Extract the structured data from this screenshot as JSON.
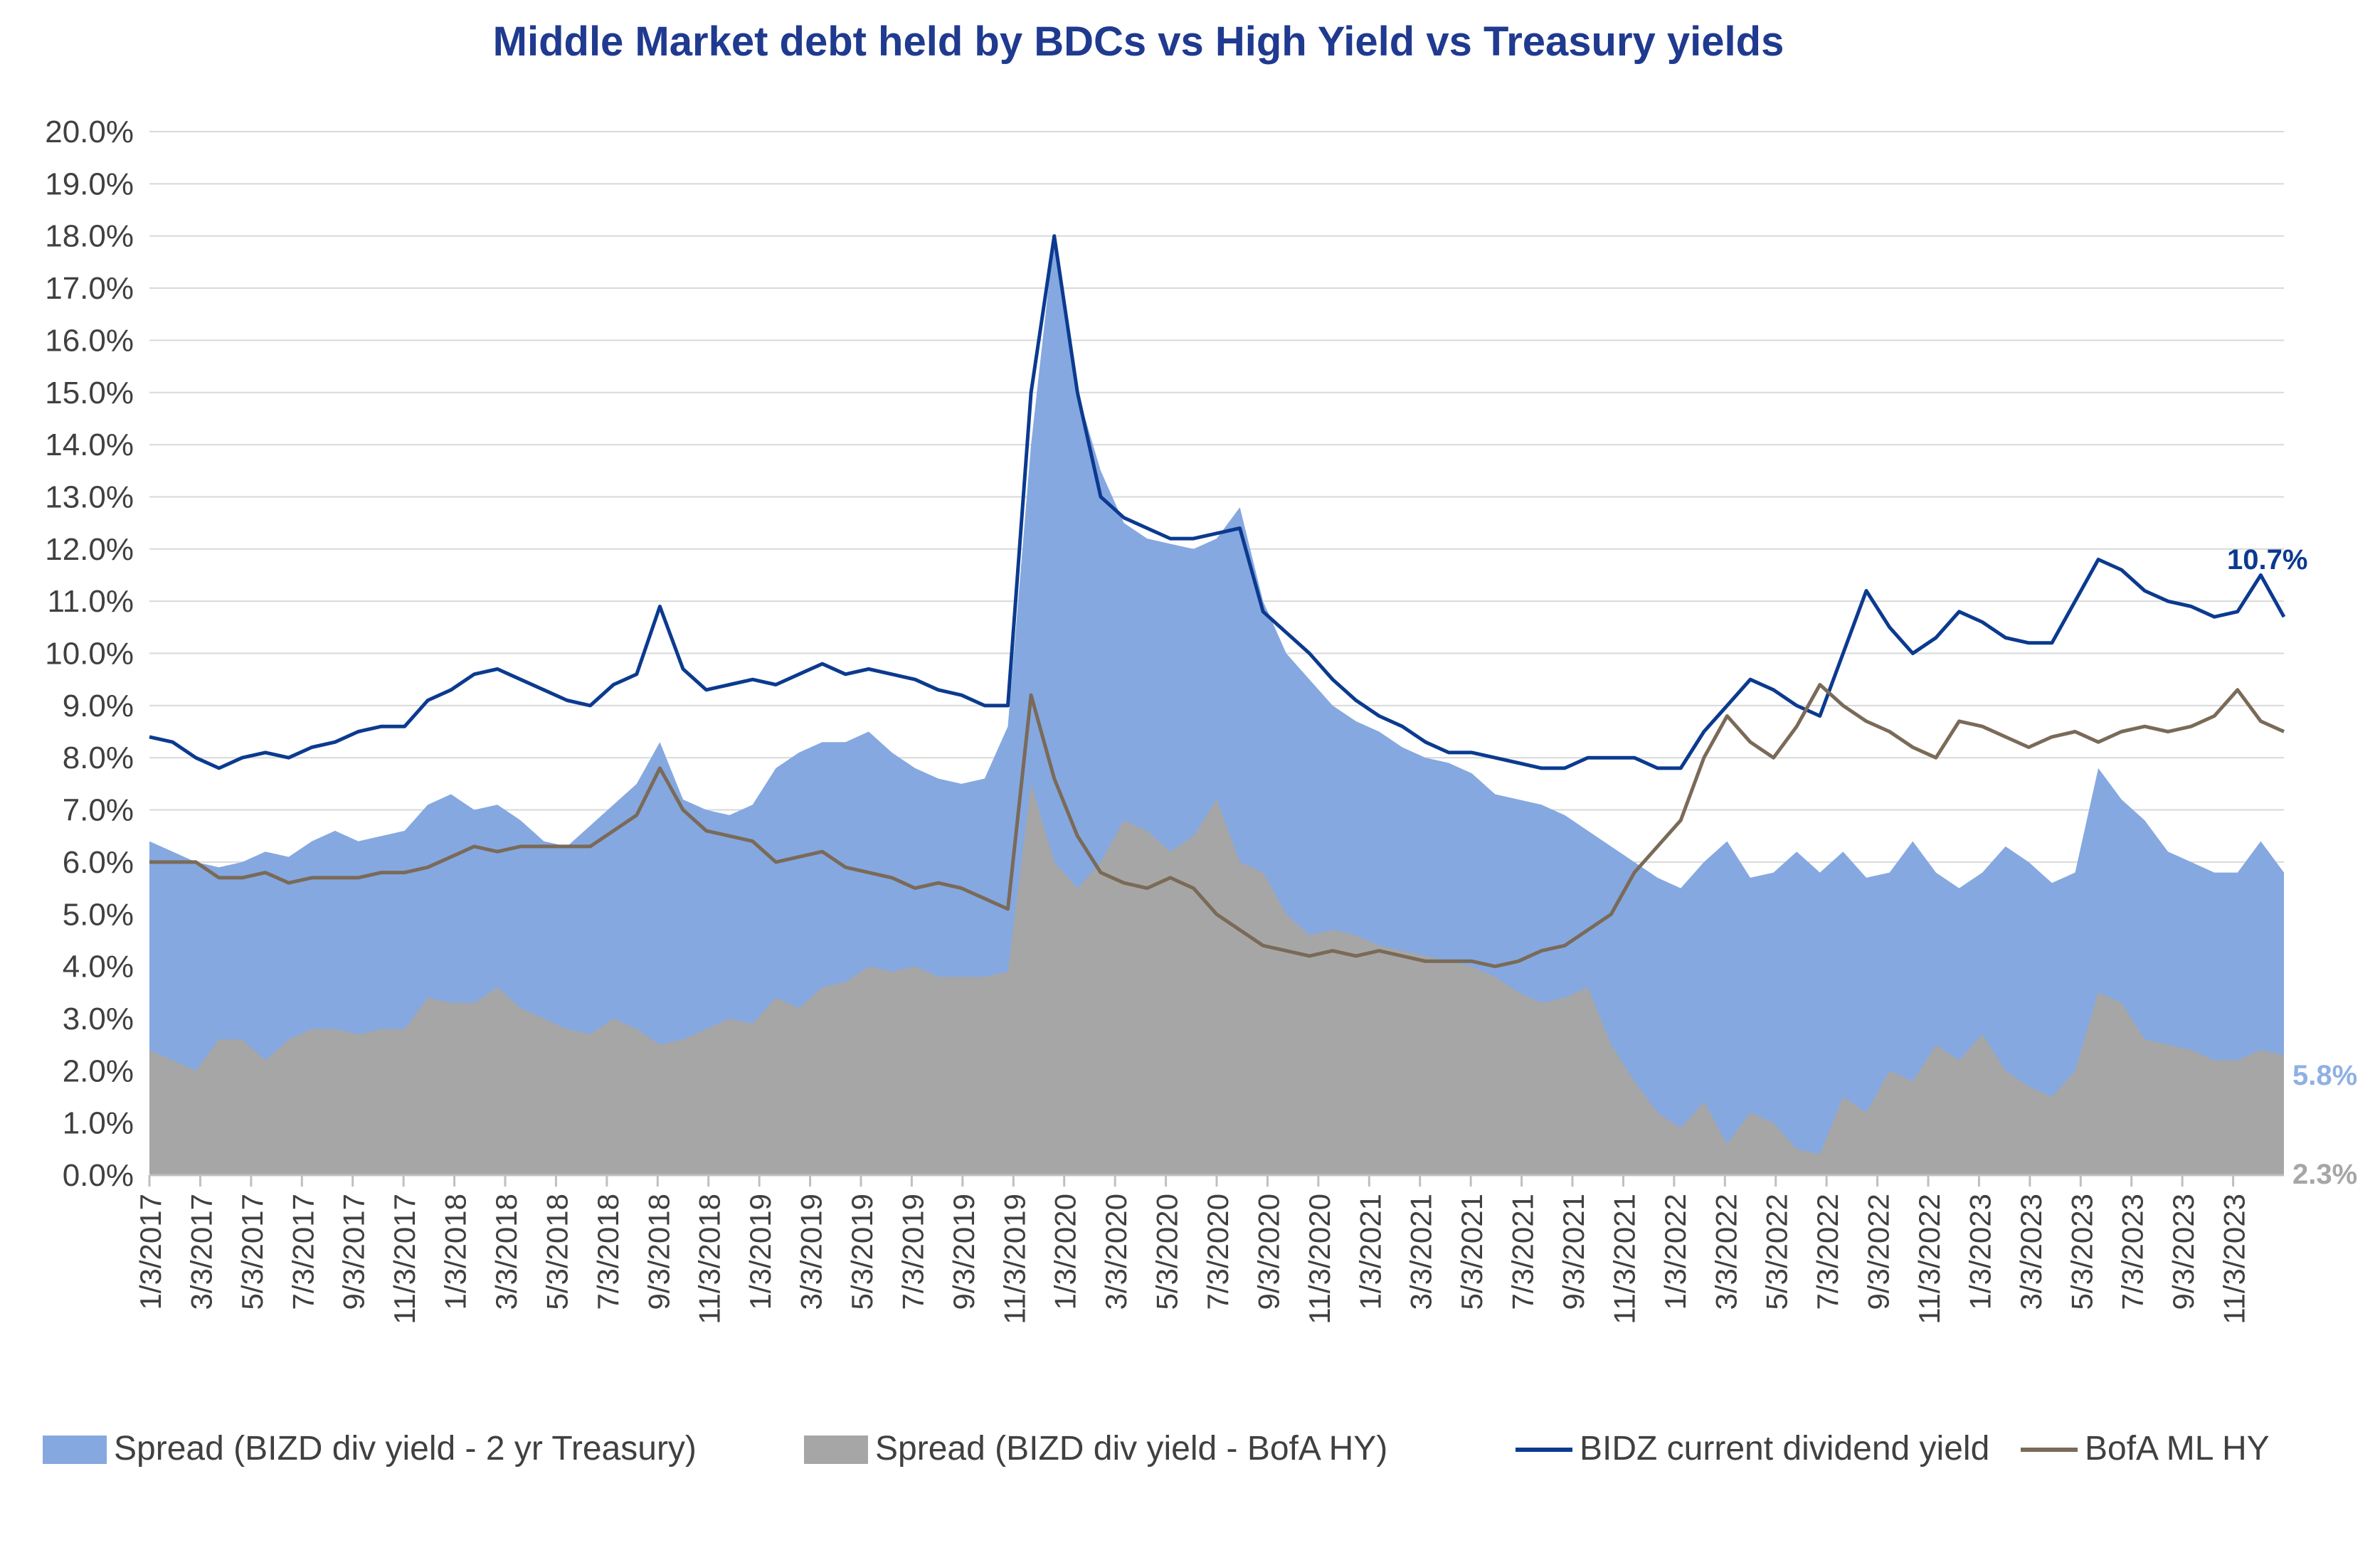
{
  "chart_data": {
    "type": "area",
    "title": "Middle Market debt held by BDCs vs High Yield vs Treasury yields",
    "xlabel": "",
    "ylabel": "",
    "ylim": [
      0,
      0.2
    ],
    "y_ticks": [
      0.0,
      0.01,
      0.02,
      0.03,
      0.04,
      0.05,
      0.06,
      0.07,
      0.08,
      0.09,
      0.1,
      0.11,
      0.12,
      0.13,
      0.14,
      0.15,
      0.16,
      0.17,
      0.18,
      0.19,
      0.2
    ],
    "y_tick_labels": [
      "0.0%",
      "1.0%",
      "2.0%",
      "3.0%",
      "4.0%",
      "5.0%",
      "6.0%",
      "7.0%",
      "8.0%",
      "9.0%",
      "10.0%",
      "11.0%",
      "12.0%",
      "13.0%",
      "14.0%",
      "15.0%",
      "16.0%",
      "17.0%",
      "18.0%",
      "19.0%",
      "20.0%"
    ],
    "x_tick_labels": [
      "1/3/2017",
      "3/3/2017",
      "5/3/2017",
      "7/3/2017",
      "9/3/2017",
      "11/3/2017",
      "1/3/2018",
      "3/3/2018",
      "5/3/2018",
      "7/3/2018",
      "9/3/2018",
      "11/3/2018",
      "1/3/2019",
      "3/3/2019",
      "5/3/2019",
      "7/3/2019",
      "9/3/2019",
      "11/3/2019",
      "1/3/2020",
      "3/3/2020",
      "5/3/2020",
      "7/3/2020",
      "9/3/2020",
      "11/3/2020",
      "1/3/2021",
      "3/3/2021",
      "5/3/2021",
      "7/3/2021",
      "9/3/2021",
      "11/3/2021",
      "1/3/2022",
      "3/3/2022",
      "5/3/2022",
      "7/3/2022",
      "9/3/2022",
      "11/3/2022",
      "1/3/2023",
      "3/3/2023",
      "5/3/2023",
      "7/3/2023",
      "9/3/2023",
      "11/3/2023"
    ],
    "grid": true,
    "legend_position": "bottom",
    "colors": {
      "spread_treasury": "#85a8e0",
      "spread_hy": "#a6a6a6",
      "bizd": "#0b3a8f",
      "bofa": "#7a6a58",
      "title": "#1f3a8f",
      "label_spread_treasury": "#8fb0e3",
      "label_spread_hy": "#a6a6a6"
    },
    "series": [
      {
        "name": "Spread (BIZD div yield - 2 yr Treasury)",
        "kind": "area",
        "values": [
          0.064,
          0.062,
          0.06,
          0.059,
          0.06,
          0.062,
          0.061,
          0.064,
          0.066,
          0.064,
          0.065,
          0.066,
          0.071,
          0.073,
          0.07,
          0.071,
          0.068,
          0.064,
          0.063,
          0.067,
          0.071,
          0.075,
          0.083,
          0.072,
          0.07,
          0.069,
          0.071,
          0.078,
          0.081,
          0.083,
          0.083,
          0.085,
          0.081,
          0.078,
          0.076,
          0.075,
          0.076,
          0.086,
          0.14,
          0.18,
          0.15,
          0.135,
          0.125,
          0.122,
          0.121,
          0.12,
          0.122,
          0.128,
          0.11,
          0.1,
          0.095,
          0.09,
          0.087,
          0.085,
          0.082,
          0.08,
          0.079,
          0.077,
          0.073,
          0.072,
          0.071,
          0.069,
          0.066,
          0.063,
          0.06,
          0.057,
          0.055,
          0.06,
          0.064,
          0.057,
          0.058,
          0.062,
          0.058,
          0.062,
          0.057,
          0.058,
          0.064,
          0.058,
          0.055,
          0.058,
          0.063,
          0.06,
          0.056,
          0.058,
          0.078,
          0.072,
          0.068,
          0.062,
          0.06,
          0.058,
          0.058,
          0.064,
          0.058
        ]
      },
      {
        "name": "Spread (BIZD div yield - BofA HY)",
        "kind": "area",
        "values": [
          0.024,
          0.022,
          0.02,
          0.026,
          0.026,
          0.022,
          0.026,
          0.028,
          0.028,
          0.027,
          0.028,
          0.028,
          0.034,
          0.033,
          0.033,
          0.036,
          0.032,
          0.03,
          0.028,
          0.027,
          0.03,
          0.028,
          0.025,
          0.026,
          0.028,
          0.03,
          0.029,
          0.034,
          0.032,
          0.036,
          0.037,
          0.04,
          0.039,
          0.04,
          0.038,
          0.038,
          0.038,
          0.039,
          0.075,
          0.06,
          0.055,
          0.06,
          0.068,
          0.066,
          0.062,
          0.065,
          0.072,
          0.06,
          0.058,
          0.05,
          0.046,
          0.047,
          0.046,
          0.044,
          0.043,
          0.042,
          0.041,
          0.04,
          0.038,
          0.035,
          0.033,
          0.034,
          0.036,
          0.025,
          0.018,
          0.012,
          0.009,
          0.014,
          0.006,
          0.012,
          0.01,
          0.005,
          0.004,
          0.015,
          0.012,
          0.02,
          0.018,
          0.025,
          0.022,
          0.027,
          0.02,
          0.017,
          0.015,
          0.02,
          0.035,
          0.033,
          0.026,
          0.025,
          0.024,
          0.022,
          0.022,
          0.024,
          0.023
        ]
      },
      {
        "name": "BIDZ current dividend yield",
        "kind": "line",
        "values": [
          0.084,
          0.083,
          0.08,
          0.078,
          0.08,
          0.081,
          0.08,
          0.082,
          0.083,
          0.085,
          0.086,
          0.086,
          0.091,
          0.093,
          0.096,
          0.097,
          0.095,
          0.093,
          0.091,
          0.09,
          0.094,
          0.096,
          0.109,
          0.097,
          0.093,
          0.094,
          0.095,
          0.094,
          0.096,
          0.098,
          0.096,
          0.097,
          0.096,
          0.095,
          0.093,
          0.092,
          0.09,
          0.09,
          0.15,
          0.18,
          0.15,
          0.13,
          0.126,
          0.124,
          0.122,
          0.122,
          0.123,
          0.124,
          0.108,
          0.104,
          0.1,
          0.095,
          0.091,
          0.088,
          0.086,
          0.083,
          0.081,
          0.081,
          0.08,
          0.079,
          0.078,
          0.078,
          0.08,
          0.08,
          0.08,
          0.078,
          0.078,
          0.085,
          0.09,
          0.095,
          0.093,
          0.09,
          0.088,
          0.1,
          0.112,
          0.105,
          0.1,
          0.103,
          0.108,
          0.106,
          0.103,
          0.102,
          0.102,
          0.11,
          0.118,
          0.116,
          0.112,
          0.11,
          0.109,
          0.107,
          0.108,
          0.115,
          0.107
        ]
      },
      {
        "name": "BofA ML HY",
        "kind": "line",
        "values": [
          0.06,
          0.06,
          0.06,
          0.057,
          0.057,
          0.058,
          0.056,
          0.057,
          0.057,
          0.057,
          0.058,
          0.058,
          0.059,
          0.061,
          0.063,
          0.062,
          0.063,
          0.063,
          0.063,
          0.063,
          0.066,
          0.069,
          0.078,
          0.07,
          0.066,
          0.065,
          0.064,
          0.06,
          0.061,
          0.062,
          0.059,
          0.058,
          0.057,
          0.055,
          0.056,
          0.055,
          0.053,
          0.051,
          0.092,
          0.076,
          0.065,
          0.058,
          0.056,
          0.055,
          0.057,
          0.055,
          0.05,
          0.047,
          0.044,
          0.043,
          0.042,
          0.043,
          0.042,
          0.043,
          0.042,
          0.041,
          0.041,
          0.041,
          0.04,
          0.041,
          0.043,
          0.044,
          0.047,
          0.05,
          0.058,
          0.063,
          0.068,
          0.08,
          0.088,
          0.083,
          0.08,
          0.086,
          0.094,
          0.09,
          0.087,
          0.085,
          0.082,
          0.08,
          0.087,
          0.086,
          0.084,
          0.082,
          0.084,
          0.085,
          0.083,
          0.085,
          0.086,
          0.085,
          0.086,
          0.088,
          0.093,
          0.087,
          0.085
        ]
      }
    ],
    "annotations": [
      {
        "text": "10.7%",
        "series": "BIDZ current dividend yield"
      },
      {
        "text": "5.8%",
        "series": "Spread (BIZD div yield - 2 yr Treasury)"
      },
      {
        "text": "2.3%",
        "series": "Spread (BIZD div yield - BofA HY)"
      }
    ]
  }
}
